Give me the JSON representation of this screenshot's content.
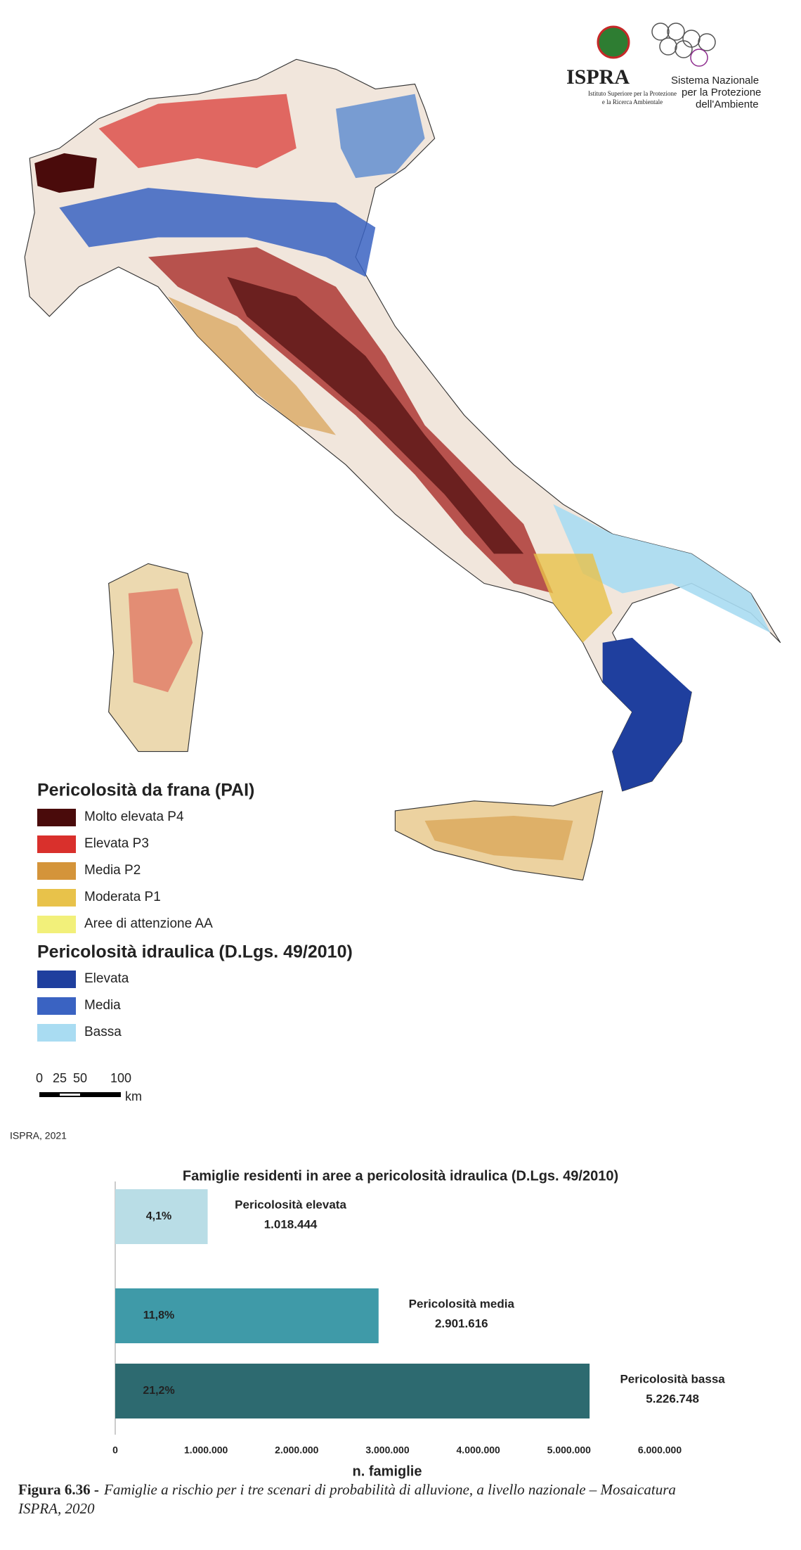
{
  "header": {
    "logo_left": "ISPRA",
    "logo_left_subtitle": [
      "Istituto Superiore per la Protezione",
      "e la Ricerca Ambientale"
    ],
    "logo_right": [
      "Sistema Nazionale",
      "per la Protezione",
      "dell'Ambiente"
    ]
  },
  "map": {
    "legend": [
      {
        "title": "Pericolosità da frana (PAI)",
        "items": [
          {
            "label": "Molto elevata P4",
            "color": "#4a0b0b"
          },
          {
            "label": "Elevata P3",
            "color": "#d9302c"
          },
          {
            "label": "Media P2",
            "color": "#d4943a"
          },
          {
            "label": "Moderata P1",
            "color": "#e8c24a"
          },
          {
            "label": "Aree di attenzione AA",
            "color": "#f2f07a"
          }
        ]
      },
      {
        "title": "Pericolosità idraulica (D.Lgs. 49/2010)",
        "items": [
          {
            "label": "Elevata",
            "color": "#1f3f9e"
          },
          {
            "label": "Media",
            "color": "#3a63c2"
          },
          {
            "label": "Bassa",
            "color": "#a9dcf2"
          }
        ]
      }
    ],
    "scale_bar": {
      "ticks": [
        0,
        25,
        50,
        100
      ],
      "unit": "km"
    },
    "source": "ISPRA, 2021"
  },
  "chart_data": {
    "type": "bar",
    "orientation": "horizontal",
    "title": "Famiglie residenti in aree a pericolosità idraulica (D.Lgs. 49/2010)",
    "categories": [
      "Pericolosità elevata",
      "Pericolosità media",
      "Pericolosità bassa"
    ],
    "values": [
      1018444,
      2901616,
      5226748
    ],
    "value_labels": [
      "1.018.444",
      "2.901.616",
      "5.226.748"
    ],
    "percent_values": [
      4.1,
      11.8,
      21.2
    ],
    "percent_labels": [
      "4,1%",
      "11,8%",
      "21,2%"
    ],
    "colors": [
      "#b9dde6",
      "#3f9aa8",
      "#2d6a70"
    ],
    "xlabel": "n. famiglie",
    "xlim": [
      0,
      6000000
    ],
    "xticks": [
      0,
      {
        "value": 1000000,
        "label": "1.000.000"
      },
      {
        "value": 2000000,
        "label": "2.000.000"
      },
      {
        "value": 3000000,
        "label": "3.000.000"
      },
      {
        "value": 4000000,
        "label": "4.000.000"
      },
      {
        "value": 5000000,
        "label": "5.000.000"
      },
      {
        "value": 6000000,
        "label": "6.000.000"
      }
    ],
    "grid": false
  },
  "caption": {
    "label": "Figura 6.36 -",
    "text": [
      "Famiglie a rischio per i tre scenari di probabilità di alluvione, a livello nazionale – Mosaicatura",
      "ISPRA, 2020"
    ]
  }
}
